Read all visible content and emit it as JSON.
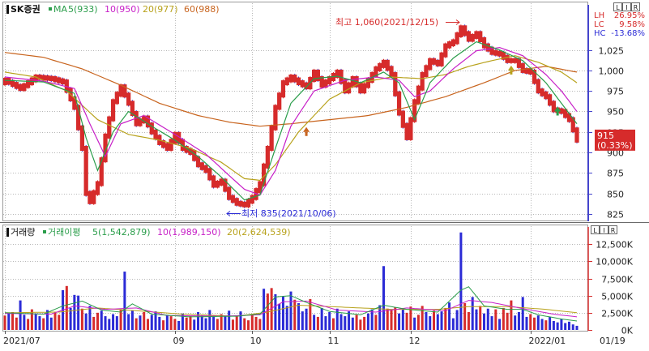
{
  "price_panel": {
    "title": "SK증권",
    "ma_prefix": "MA",
    "ma_items": [
      {
        "label": "5(933)",
        "color": "#2a9d4a"
      },
      {
        "label": "10(950)",
        "color": "#c71fc7"
      },
      {
        "label": "20(977)",
        "color": "#b8a21c"
      },
      {
        "label": "60(988)",
        "color": "#c8641e"
      }
    ],
    "stats": [
      {
        "label": "LH",
        "value": "26.95%"
      },
      {
        "label": "LC",
        "value": "9.58%"
      },
      {
        "label": "HC",
        "value": "-13.68%"
      }
    ],
    "high_annotation": "최고 1,060(2021/12/15)",
    "low_annotation": "최저 835(2021/10/06)",
    "last_price": "915",
    "last_change": "(0.33%)",
    "lir_buttons": [
      "L",
      "I",
      "R"
    ]
  },
  "volume_panel": {
    "title": "거래량",
    "ma_prefix": "거래이평",
    "ma_items": [
      {
        "label": "5(1,542,879)",
        "color": "#2a9d4a"
      },
      {
        "label": "10(1,989,150)",
        "color": "#c71fc7"
      },
      {
        "label": "20(2,624,539)",
        "color": "#b8a21c"
      }
    ],
    "lir_buttons": [
      "L",
      "I",
      "R"
    ]
  },
  "x_axis": {
    "labels": [
      {
        "text": "2021/07",
        "index": 0
      },
      {
        "text": "09",
        "index": 44
      },
      {
        "text": "10",
        "index": 64
      },
      {
        "text": "11",
        "index": 84
      },
      {
        "text": "12",
        "index": 105
      },
      {
        "text": "2022/01",
        "index": 136
      }
    ],
    "current": "01/19"
  },
  "colors": {
    "up": "#d62b2b",
    "down": "#2b2bd6",
    "ma5": "#2a9d4a",
    "ma10": "#c71fc7",
    "ma20": "#b8a21c",
    "ma60": "#c8641e",
    "grid": "#b7b7b7",
    "volume_axis": "#d62b2b"
  },
  "chart_data": [
    {
      "type": "candlestick",
      "title": "SK증권",
      "ylim": [
        818,
        1080
      ],
      "yticks": [
        825,
        850,
        875,
        900,
        925,
        950,
        975,
        1000,
        1025
      ],
      "grid": true,
      "anchors": [
        [
          0,
          988
        ],
        [
          4,
          978
        ],
        [
          8,
          992
        ],
        [
          12,
          990
        ],
        [
          15,
          986
        ],
        [
          18,
          955
        ],
        [
          20,
          905
        ],
        [
          21,
          850
        ],
        [
          22,
          840
        ],
        [
          24,
          862
        ],
        [
          26,
          920
        ],
        [
          28,
          962
        ],
        [
          30,
          980
        ],
        [
          32,
          960
        ],
        [
          34,
          935
        ],
        [
          36,
          942
        ],
        [
          38,
          925
        ],
        [
          40,
          912
        ],
        [
          42,
          905
        ],
        [
          44,
          922
        ],
        [
          46,
          905
        ],
        [
          48,
          900
        ],
        [
          50,
          885
        ],
        [
          52,
          878
        ],
        [
          54,
          860
        ],
        [
          56,
          865
        ],
        [
          58,
          845
        ],
        [
          60,
          838
        ],
        [
          62,
          836
        ],
        [
          64,
          845
        ],
        [
          66,
          862
        ],
        [
          68,
          905
        ],
        [
          70,
          955
        ],
        [
          72,
          985
        ],
        [
          74,
          992
        ],
        [
          76,
          985
        ],
        [
          78,
          980
        ],
        [
          80,
          998
        ],
        [
          82,
          982
        ],
        [
          84,
          990
        ],
        [
          86,
          998
        ],
        [
          88,
          975
        ],
        [
          90,
          990
        ],
        [
          92,
          975
        ],
        [
          94,
          988
        ],
        [
          96,
          1002
        ],
        [
          98,
          1010
        ],
        [
          100,
          995
        ],
        [
          102,
          948
        ],
        [
          104,
          918
        ],
        [
          106,
          962
        ],
        [
          108,
          995
        ],
        [
          110,
          1012
        ],
        [
          112,
          1008
        ],
        [
          114,
          1030
        ],
        [
          116,
          1035
        ],
        [
          118,
          1052
        ],
        [
          120,
          1038
        ],
        [
          122,
          1045
        ],
        [
          124,
          1030
        ],
        [
          126,
          1022
        ],
        [
          128,
          1020
        ],
        [
          130,
          1012
        ],
        [
          132,
          1012
        ],
        [
          134,
          1000
        ],
        [
          136,
          998
        ],
        [
          138,
          975
        ],
        [
          140,
          968
        ],
        [
          142,
          952
        ],
        [
          144,
          950
        ],
        [
          146,
          940
        ],
        [
          148,
          915
        ]
      ],
      "ma5": [
        [
          0,
          988
        ],
        [
          10,
          986
        ],
        [
          18,
          972
        ],
        [
          21,
          918
        ],
        [
          24,
          878
        ],
        [
          28,
          925
        ],
        [
          32,
          950
        ],
        [
          38,
          932
        ],
        [
          44,
          915
        ],
        [
          50,
          895
        ],
        [
          56,
          870
        ],
        [
          62,
          842
        ],
        [
          66,
          848
        ],
        [
          70,
          905
        ],
        [
          74,
          960
        ],
        [
          80,
          990
        ],
        [
          86,
          993
        ],
        [
          92,
          985
        ],
        [
          98,
          998
        ],
        [
          102,
          985
        ],
        [
          106,
          940
        ],
        [
          110,
          985
        ],
        [
          116,
          1015
        ],
        [
          122,
          1035
        ],
        [
          128,
          1025
        ],
        [
          134,
          1012
        ],
        [
          140,
          985
        ],
        [
          144,
          960
        ],
        [
          148,
          935
        ]
      ],
      "ma10": [
        [
          0,
          992
        ],
        [
          10,
          987
        ],
        [
          18,
          978
        ],
        [
          22,
          935
        ],
        [
          26,
          895
        ],
        [
          30,
          935
        ],
        [
          36,
          945
        ],
        [
          44,
          922
        ],
        [
          52,
          898
        ],
        [
          58,
          872
        ],
        [
          62,
          855
        ],
        [
          66,
          848
        ],
        [
          70,
          878
        ],
        [
          74,
          932
        ],
        [
          80,
          975
        ],
        [
          88,
          988
        ],
        [
          96,
          992
        ],
        [
          102,
          988
        ],
        [
          106,
          968
        ],
        [
          110,
          975
        ],
        [
          116,
          1002
        ],
        [
          122,
          1024
        ],
        [
          128,
          1028
        ],
        [
          134,
          1018
        ],
        [
          140,
          995
        ],
        [
          144,
          975
        ],
        [
          148,
          950
        ]
      ],
      "ma20": [
        [
          0,
          998
        ],
        [
          8,
          992
        ],
        [
          16,
          975
        ],
        [
          24,
          940
        ],
        [
          32,
          922
        ],
        [
          40,
          915
        ],
        [
          48,
          905
        ],
        [
          56,
          888
        ],
        [
          62,
          868
        ],
        [
          66,
          866
        ],
        [
          70,
          885
        ],
        [
          76,
          925
        ],
        [
          84,
          965
        ],
        [
          92,
          985
        ],
        [
          100,
          992
        ],
        [
          108,
          990
        ],
        [
          114,
          995
        ],
        [
          120,
          1005
        ],
        [
          126,
          1012
        ],
        [
          132,
          1018
        ],
        [
          138,
          1010
        ],
        [
          144,
          998
        ],
        [
          148,
          985
        ]
      ],
      "ma60": [
        [
          0,
          1022
        ],
        [
          10,
          1016
        ],
        [
          20,
          1002
        ],
        [
          30,
          982
        ],
        [
          40,
          960
        ],
        [
          50,
          945
        ],
        [
          58,
          937
        ],
        [
          66,
          932
        ],
        [
          74,
          935
        ],
        [
          84,
          940
        ],
        [
          94,
          945
        ],
        [
          104,
          955
        ],
        [
          114,
          968
        ],
        [
          124,
          985
        ],
        [
          132,
          1000
        ],
        [
          140,
          1005
        ],
        [
          148,
          998
        ]
      ],
      "markers": [
        {
          "index": 78,
          "value": 925,
          "color": "#c8641e"
        },
        {
          "index": 131,
          "value": 1000,
          "color": "#b8a21c"
        },
        {
          "index": 143,
          "value": 950,
          "color": "#2a9d4a"
        }
      ],
      "high": {
        "index": 117,
        "value": 1060
      },
      "low": {
        "index": 61,
        "value": 835
      },
      "last": 915
    },
    {
      "type": "bar",
      "title": "거래량",
      "ylim": [
        0,
        15000000
      ],
      "yticks": [
        0,
        2500000,
        5000000,
        7500000,
        10000000,
        12500000
      ],
      "ytick_labels": [
        "0K",
        "2,500K",
        "5,000K",
        "7,500K",
        "10,000K",
        "12,500K"
      ],
      "grid": true,
      "volumes": [
        2.1,
        2.5,
        2.6,
        1.8,
        4.3,
        2.2,
        1.6,
        3.0,
        2.4,
        2.0,
        1.7,
        2.9,
        1.8,
        2.6,
        2.2,
        5.8,
        6.4,
        3.2,
        5.1,
        5.0,
        3.1,
        2.4,
        3.5,
        1.9,
        2.5,
        2.8,
        2.0,
        1.6,
        2.3,
        2.0,
        2.9,
        8.5,
        2.3,
        2.8,
        1.7,
        2.1,
        2.6,
        1.6,
        2.2,
        2.7,
        1.9,
        1.4,
        2.2,
        2.0,
        1.6,
        1.3,
        2.4,
        1.8,
        2.0,
        1.5,
        2.6,
        2.1,
        1.7,
        2.9,
        1.9,
        1.6,
        2.3,
        2.0,
        2.8,
        1.5,
        2.1,
        2.7,
        1.7,
        1.4,
        2.2,
        1.9,
        1.6,
        6.0,
        5.3,
        6.1,
        5.2,
        3.8,
        4.9,
        3.5,
        5.6,
        4.4,
        3.9,
        2.7,
        3.1,
        4.5,
        2.2,
        1.9,
        3.2,
        2.0,
        2.6,
        1.7,
        3.1,
        2.3,
        2.0,
        2.7,
        1.8,
        2.2,
        1.5,
        1.9,
        2.4,
        3.0,
        2.2,
        3.6,
        9.3,
        3.1,
        2.9,
        3.3,
        2.4,
        3.0,
        2.5,
        3.4,
        1.8,
        2.2,
        3.5,
        2.6,
        2.0,
        2.8,
        2.3,
        2.7,
        3.2,
        4.0,
        1.7,
        2.9,
        14.2,
        3.9,
        2.6,
        4.8,
        3.0,
        3.5,
        2.4,
        3.1,
        2.0,
        3.0,
        1.6,
        3.2,
        2.5,
        4.3,
        2.1,
        2.6,
        4.8,
        1.9,
        2.3,
        1.8,
        2.1,
        1.6,
        1.4,
        1.9,
        1.3,
        1.1,
        1.6,
        1.0,
        1.2,
        0.8,
        0.6
      ],
      "directions": "uduudduuddudduududddudduuddddduddduduuddduduudduudddddduudduuduuuuuduudddddudddududdduddddduuuddudduuudduuduudduddudddduudduddduduuudddduuddudddd",
      "ma5": [
        [
          0,
          2.5
        ],
        [
          10,
          2.3
        ],
        [
          15,
          3.5
        ],
        [
          20,
          4.2
        ],
        [
          25,
          2.9
        ],
        [
          30,
          2.6
        ],
        [
          33,
          3.8
        ],
        [
          38,
          2.3
        ],
        [
          48,
          1.9
        ],
        [
          60,
          2.0
        ],
        [
          66,
          2.3
        ],
        [
          70,
          4.8
        ],
        [
          74,
          5.0
        ],
        [
          78,
          4.0
        ],
        [
          84,
          2.7
        ],
        [
          92,
          2.2
        ],
        [
          98,
          3.6
        ],
        [
          104,
          3.0
        ],
        [
          112,
          2.6
        ],
        [
          118,
          5.8
        ],
        [
          120,
          6.3
        ],
        [
          124,
          3.5
        ],
        [
          130,
          3.0
        ],
        [
          134,
          3.0
        ],
        [
          138,
          2.2
        ],
        [
          144,
          1.6
        ],
        [
          148,
          1.3
        ]
      ],
      "ma10": [
        [
          0,
          2.4
        ],
        [
          12,
          2.3
        ],
        [
          18,
          3.5
        ],
        [
          26,
          3.0
        ],
        [
          34,
          3.2
        ],
        [
          42,
          2.1
        ],
        [
          56,
          2.0
        ],
        [
          66,
          2.2
        ],
        [
          72,
          4.1
        ],
        [
          78,
          4.2
        ],
        [
          86,
          2.9
        ],
        [
          96,
          2.6
        ],
        [
          104,
          3.2
        ],
        [
          114,
          2.8
        ],
        [
          120,
          4.3
        ],
        [
          126,
          4.0
        ],
        [
          134,
          3.1
        ],
        [
          142,
          2.3
        ],
        [
          148,
          1.9
        ]
      ],
      "ma20": [
        [
          0,
          2.5
        ],
        [
          14,
          2.6
        ],
        [
          24,
          3.2
        ],
        [
          34,
          2.8
        ],
        [
          46,
          2.3
        ],
        [
          60,
          2.0
        ],
        [
          68,
          2.6
        ],
        [
          76,
          3.6
        ],
        [
          88,
          3.3
        ],
        [
          100,
          3.0
        ],
        [
          112,
          3.0
        ],
        [
          120,
          3.4
        ],
        [
          130,
          3.4
        ],
        [
          140,
          3.0
        ],
        [
          148,
          2.5
        ]
      ]
    }
  ]
}
